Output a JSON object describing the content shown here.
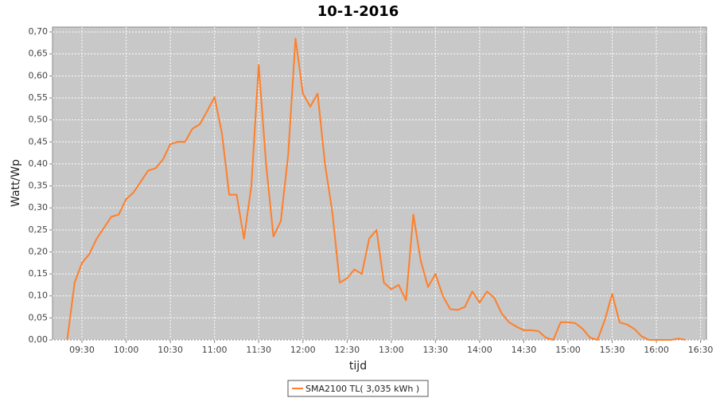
{
  "chart_data": {
    "type": "line",
    "title": "10-1-2016",
    "x_label": "tijd",
    "y_label": "Watt/Wp",
    "x": [
      "09:20",
      "09:25",
      "09:30",
      "09:35",
      "09:40",
      "09:45",
      "09:50",
      "09:55",
      "10:00",
      "10:05",
      "10:10",
      "10:15",
      "10:20",
      "10:25",
      "10:30",
      "10:35",
      "10:40",
      "10:45",
      "10:50",
      "10:55",
      "11:00",
      "11:05",
      "11:10",
      "11:15",
      "11:20",
      "11:25",
      "11:30",
      "11:35",
      "11:40",
      "11:45",
      "11:50",
      "11:55",
      "12:00",
      "12:05",
      "12:10",
      "12:15",
      "12:20",
      "12:25",
      "12:30",
      "12:35",
      "12:40",
      "12:45",
      "12:50",
      "12:55",
      "13:00",
      "13:05",
      "13:10",
      "13:15",
      "13:20",
      "13:25",
      "13:30",
      "13:35",
      "13:40",
      "13:45",
      "13:50",
      "13:55",
      "14:00",
      "14:05",
      "14:10",
      "14:15",
      "14:20",
      "14:25",
      "14:30",
      "14:35",
      "14:40",
      "14:45",
      "14:50",
      "14:55",
      "15:00",
      "15:05",
      "15:10",
      "15:15",
      "15:20",
      "15:25",
      "15:30",
      "15:35",
      "15:40",
      "15:45",
      "15:50",
      "15:55",
      "16:00",
      "16:05",
      "16:10",
      "16:15",
      "16:20"
    ],
    "series": [
      {
        "name": "SMA2100 TL( 3,035 kWh )",
        "color": "#ff7f2a",
        "values": [
          0,
          0.13,
          0.175,
          0.195,
          0.23,
          0.255,
          0.28,
          0.285,
          0.32,
          0.335,
          0.36,
          0.385,
          0.39,
          0.41,
          0.445,
          0.45,
          0.45,
          0.48,
          0.49,
          0.52,
          0.552,
          0.47,
          0.33,
          0.33,
          0.23,
          0.35,
          0.625,
          0.4,
          0.235,
          0.27,
          0.42,
          0.685,
          0.56,
          0.53,
          0.56,
          0.4,
          0.29,
          0.13,
          0.14,
          0.16,
          0.15,
          0.23,
          0.25,
          0.13,
          0.115,
          0.125,
          0.09,
          0.285,
          0.18,
          0.12,
          0.15,
          0.1,
          0.07,
          0.068,
          0.075,
          0.11,
          0.085,
          0.11,
          0.095,
          0.06,
          0.04,
          0.03,
          0.022,
          0.022,
          0.02,
          0.005,
          0,
          0.04,
          0.04,
          0.038,
          0.025,
          0.005,
          0,
          0.045,
          0.105,
          0.04,
          0.035,
          0.025,
          0.008,
          0,
          0,
          0,
          0,
          0.003,
          0
        ]
      }
    ],
    "xlim": [
      "09:10",
      "16:34"
    ],
    "xticks": [
      "09:30",
      "10:00",
      "10:30",
      "11:00",
      "11:30",
      "12:00",
      "12:30",
      "13:00",
      "13:30",
      "14:00",
      "14:30",
      "15:00",
      "15:30",
      "16:00",
      "16:30"
    ],
    "ylim": [
      0,
      0.711
    ],
    "yticks": [
      {
        "value": 0,
        "label": "0,00"
      },
      {
        "value": 0.05,
        "label": "0,05"
      },
      {
        "value": 0.1,
        "label": "0,10"
      },
      {
        "value": 0.15,
        "label": "0,15"
      },
      {
        "value": 0.2,
        "label": "0,20"
      },
      {
        "value": 0.25,
        "label": "0,25"
      },
      {
        "value": 0.3,
        "label": "0,30"
      },
      {
        "value": 0.35,
        "label": "0,35"
      },
      {
        "value": 0.4,
        "label": "0,40"
      },
      {
        "value": 0.45,
        "label": "0,45"
      },
      {
        "value": 0.5,
        "label": "0,50"
      },
      {
        "value": 0.55,
        "label": "0,55"
      },
      {
        "value": 0.6,
        "label": "0,60"
      },
      {
        "value": 0.65,
        "label": "0,65"
      },
      {
        "value": 0.7,
        "label": "0,70"
      }
    ],
    "grid": true,
    "legend": "bottom"
  }
}
